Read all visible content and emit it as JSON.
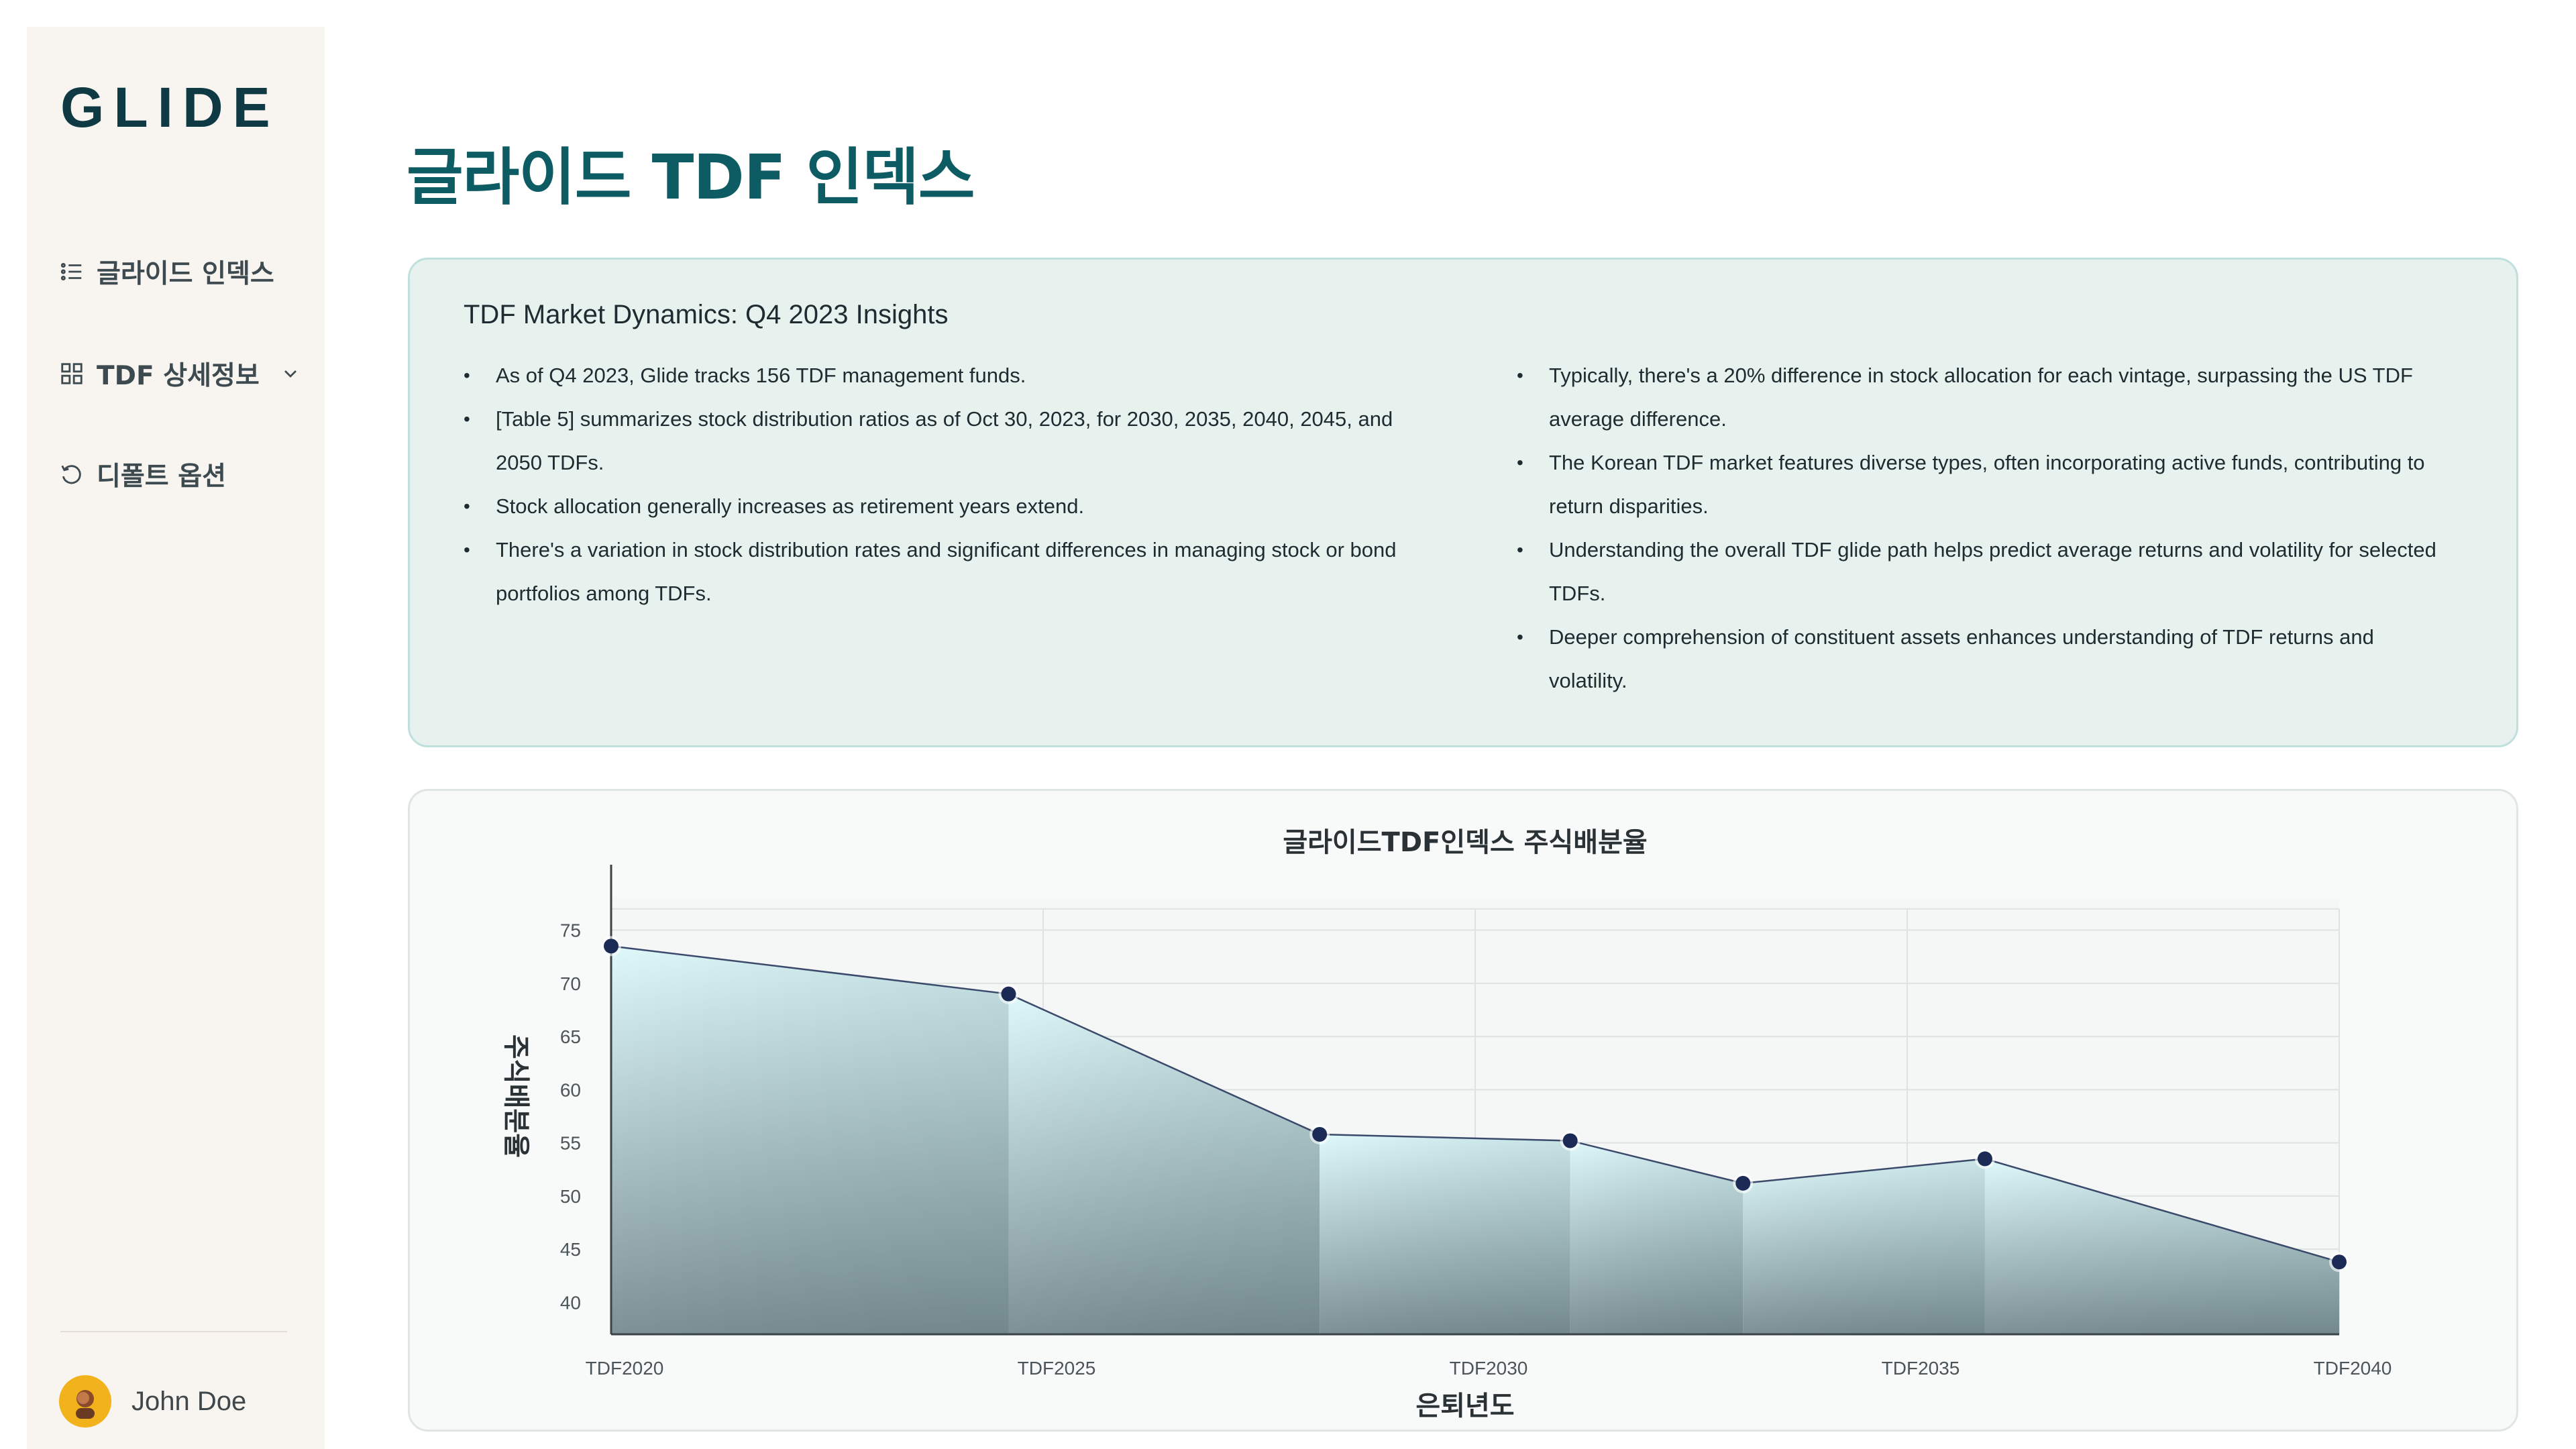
{
  "sidebar": {
    "logo": "GLIDE",
    "items": [
      {
        "label": "글라이드 인덱스",
        "icon": "list-icon"
      },
      {
        "label": "TDF 상세정보",
        "icon": "grid-icon",
        "has_dropdown": true
      },
      {
        "label": "디폴트 옵션",
        "icon": "refresh-icon"
      }
    ],
    "user": {
      "name": "John Doe",
      "avatar": "user-avatar"
    }
  },
  "main": {
    "title": "글라이드 TDF 인덱스",
    "insights": {
      "heading": "TDF Market Dynamics: Q4 2023 Insights",
      "left": [
        "As of Q4 2023, Glide tracks 156 TDF management funds.",
        "[Table 5] summarizes stock distribution ratios as of Oct 30, 2023, for 2030, 2035, 2040, 2045, and 2050 TDFs.",
        "Stock allocation generally increases as retirement years extend.",
        "There's a variation in stock distribution rates and significant differences in managing stock or bond portfolios among TDFs."
      ],
      "right": [
        "Typically, there's a 20% difference in stock allocation for each vintage, surpassing the US TDF average difference.",
        "The Korean TDF market features diverse types, often incorporating active funds, contributing to return disparities.",
        "Understanding the overall TDF glide path helps predict average returns and volatility for selected TDFs.",
        "Deeper comprehension of constituent assets enhances understanding of TDF returns and volatility."
      ]
    }
  },
  "chart_data": {
    "type": "area",
    "title": "글라이드TDF인덱스 주식배분율",
    "xlabel": "은퇴년도",
    "ylabel": "주식배분율",
    "x_ticks": [
      "TDF2020",
      "TDF2025",
      "TDF2030",
      "TDF2035",
      "TDF2040"
    ],
    "x_range": [
      2020,
      2040
    ],
    "ylim": [
      37,
      78
    ],
    "y_ticks": [
      40,
      45,
      50,
      55,
      60,
      65,
      70,
      75
    ],
    "grid": true,
    "points": [
      {
        "x": 2020,
        "y": 73.5
      },
      {
        "x": 2024.6,
        "y": 69
      },
      {
        "x": 2028.2,
        "y": 55.8
      },
      {
        "x": 2031.1,
        "y": 55.2
      },
      {
        "x": 2033.1,
        "y": 51.2
      },
      {
        "x": 2035.9,
        "y": 53.5
      },
      {
        "x": 2040,
        "y": 43.8
      }
    ],
    "colors": {
      "line": "#3b4a6b",
      "marker": "#1b2b55",
      "fill_top": "#d6f7fa",
      "fill_bottom": "#7d959a"
    }
  }
}
